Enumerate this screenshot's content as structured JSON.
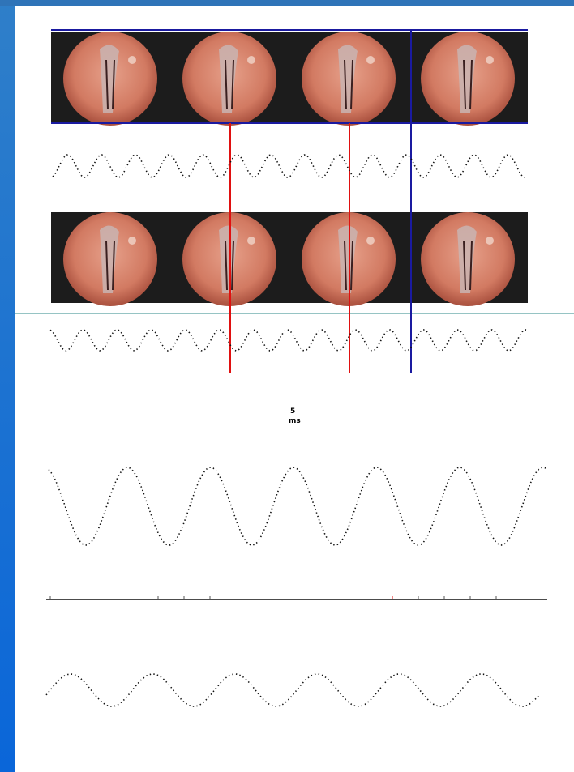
{
  "scale_bar": {
    "number": "5",
    "unit": "ms"
  }
}
